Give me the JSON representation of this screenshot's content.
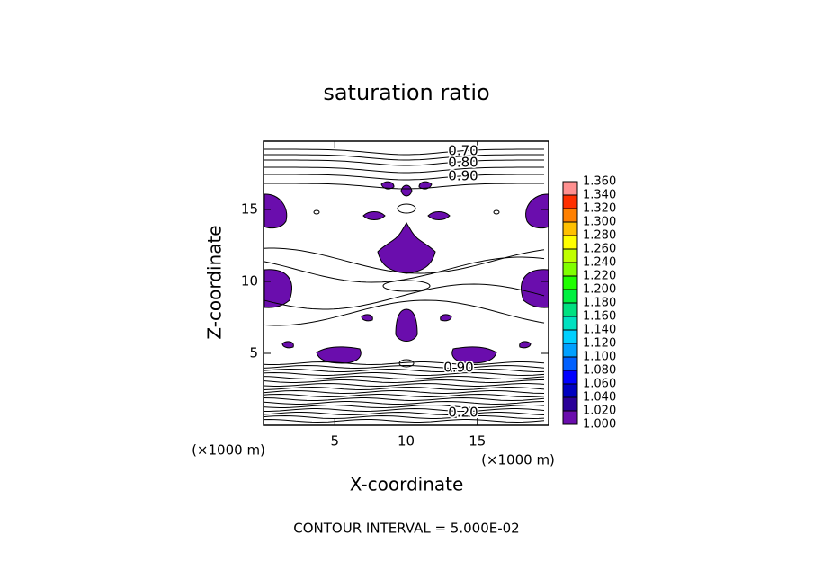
{
  "chart_data": {
    "type": "contour",
    "title": "saturation ratio",
    "x_label": "X-coordinate",
    "y_label": "Z-coordinate",
    "x_unit": "(×1000 m)",
    "y_unit": "(×1000 m)",
    "xlim": [
      0,
      20
    ],
    "ylim": [
      0,
      19.75
    ],
    "xticks": [
      5,
      10,
      15
    ],
    "yticks": [
      5,
      10,
      15
    ],
    "contour_labels": [
      {
        "value": 0.7,
        "label": "0.70"
      },
      {
        "value": 0.8,
        "label": "0.80"
      },
      {
        "value": 0.9,
        "label": "0.90"
      },
      {
        "value": 0.9,
        "label": "0.90"
      },
      {
        "value": 0.2,
        "label": "0.20"
      }
    ],
    "footer": "CONTOUR INTERVAL = 5.000E-02",
    "colorbar": {
      "levels": [
        {
          "value": 1.0,
          "label": "1.000"
        },
        {
          "value": 1.02,
          "label": "1.020"
        },
        {
          "value": 1.04,
          "label": "1.040"
        },
        {
          "value": 1.06,
          "label": "1.060"
        },
        {
          "value": 1.08,
          "label": "1.080"
        },
        {
          "value": 1.1,
          "label": "1.100"
        },
        {
          "value": 1.12,
          "label": "1.120"
        },
        {
          "value": 1.14,
          "label": "1.140"
        },
        {
          "value": 1.16,
          "label": "1.160"
        },
        {
          "value": 1.18,
          "label": "1.180"
        },
        {
          "value": 1.2,
          "label": "1.200"
        },
        {
          "value": 1.22,
          "label": "1.220"
        },
        {
          "value": 1.24,
          "label": "1.240"
        },
        {
          "value": 1.26,
          "label": "1.260"
        },
        {
          "value": 1.28,
          "label": "1.280"
        },
        {
          "value": 1.3,
          "label": "1.300"
        },
        {
          "value": 1.32,
          "label": "1.320"
        },
        {
          "value": 1.34,
          "label": "1.340"
        },
        {
          "value": 1.36,
          "label": "1.360"
        }
      ],
      "colors": [
        "#6a0dad",
        "#2a0098",
        "#0000c0",
        "#0000ff",
        "#0060ff",
        "#00a0ff",
        "#00d0ff",
        "#00e0c0",
        "#00e080",
        "#00f040",
        "#20ff00",
        "#80ff00",
        "#c0ff00",
        "#ffff00",
        "#ffc000",
        "#ff8000",
        "#ff3000",
        "#ff9090"
      ]
    }
  }
}
